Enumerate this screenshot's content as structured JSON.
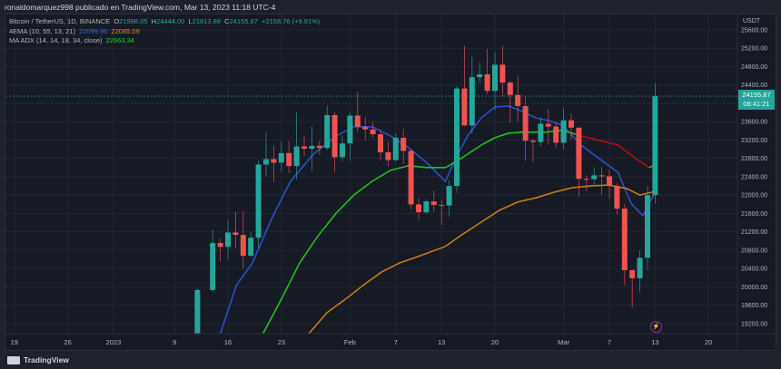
{
  "header": {
    "publish_line": "ronaldomarquez998 publicado en TradingView.com, Mar 13, 2023 11:18 UTC-4"
  },
  "legend": {
    "symbol": "Bitcoin / TetherUS, 1D, BINANCE",
    "o_label": "O",
    "o": "21998.05",
    "h_label": "H",
    "h": "24444.00",
    "l_label": "L",
    "l": "21813.88",
    "c_label": "C",
    "c": "24155.87",
    "change": "+2158.76 (+9.81%)",
    "ema_name": "4EMA (10, 55, 13, 21)",
    "ema_v1": "22099.96",
    "ema_v2": "22085.09",
    "adx_name": "MA ADX (14, 14, 18, 34, close)",
    "adx_v": "22663.34"
  },
  "price_axis": {
    "currency": "USDT",
    "ticks": [
      "25600.00",
      "25200.00",
      "24800.00",
      "24400.00",
      "24000.00",
      "23600.00",
      "23200.00",
      "22800.00",
      "22400.00",
      "22000.00",
      "21600.00",
      "21200.00",
      "20800.00",
      "20400.00",
      "20000.00",
      "19600.00",
      "19200.00"
    ],
    "last_price": "24155.87",
    "countdown": "08:41:21"
  },
  "footer": {
    "brand": "TradingView"
  },
  "colors": {
    "up": "#26a69a",
    "down": "#ef5350",
    "ema_fast": "#2b4fc9",
    "ema_slow": "#c87a14",
    "adx_ma": "#1fc21f",
    "adx_ma_bear": "#b00e0e",
    "bg": "#161a25",
    "grid": "#222633"
  },
  "chart_data": {
    "type": "candlestick",
    "title": "Bitcoin / TetherUS, 1D, BINANCE",
    "x_unit": "days since 2023-01-01",
    "ylim": [
      19000,
      25800
    ],
    "x_ticks": [
      {
        "day": -13,
        "label": "19"
      },
      {
        "day": -6,
        "label": "26"
      },
      {
        "day": 0,
        "label": "2023"
      },
      {
        "day": 8,
        "label": "9"
      },
      {
        "day": 15,
        "label": "16"
      },
      {
        "day": 22,
        "label": "23"
      },
      {
        "day": 31,
        "label": "Feb"
      },
      {
        "day": 37,
        "label": "7"
      },
      {
        "day": 43,
        "label": "13"
      },
      {
        "day": 50,
        "label": "20"
      },
      {
        "day": 59,
        "label": "Mar"
      },
      {
        "day": 65,
        "label": "7"
      },
      {
        "day": 71,
        "label": "13"
      },
      {
        "day": 78,
        "label": "20"
      }
    ],
    "y_tick_values": [
      25600,
      25200,
      24800,
      24400,
      24000,
      23600,
      23200,
      22800,
      22400,
      22000,
      21600,
      21200,
      20800,
      20400,
      20000,
      19600,
      19200
    ],
    "candles": [
      [
        11,
        18850,
        19970,
        18700,
        19930
      ],
      [
        13,
        19930,
        21250,
        19890,
        20954
      ],
      [
        14,
        20954,
        21050,
        20550,
        20871
      ],
      [
        15,
        20871,
        21460,
        20600,
        21185
      ],
      [
        16,
        21185,
        21640,
        20840,
        21132
      ],
      [
        17,
        21132,
        21650,
        20400,
        20677
      ],
      [
        18,
        20677,
        21190,
        20650,
        21071
      ],
      [
        19,
        21071,
        22750,
        20860,
        22667
      ],
      [
        20,
        22667,
        23370,
        22400,
        22783
      ],
      [
        21,
        22783,
        23078,
        22290,
        22707
      ],
      [
        22,
        22707,
        23170,
        22520,
        22916
      ],
      [
        23,
        22916,
        23180,
        22480,
        22632
      ],
      [
        24,
        22632,
        23800,
        22340,
        23060
      ],
      [
        25,
        23060,
        23290,
        22850,
        23009
      ],
      [
        26,
        23009,
        23500,
        22530,
        23074
      ],
      [
        27,
        23074,
        23180,
        22880,
        23027
      ],
      [
        28,
        23027,
        23950,
        22980,
        23743
      ],
      [
        29,
        23743,
        23800,
        22500,
        22826
      ],
      [
        30,
        22826,
        23300,
        22730,
        23125
      ],
      [
        31,
        23125,
        23800,
        22760,
        23732
      ],
      [
        32,
        23732,
        24250,
        23360,
        23488
      ],
      [
        33,
        23488,
        23700,
        23200,
        23431
      ],
      [
        34,
        23431,
        23590,
        23250,
        23326
      ],
      [
        35,
        23326,
        23430,
        22750,
        22932
      ],
      [
        36,
        22932,
        23160,
        22630,
        22762
      ],
      [
        37,
        22762,
        23350,
        22740,
        23249
      ],
      [
        38,
        23249,
        23450,
        22680,
        22963
      ],
      [
        39,
        22963,
        23010,
        21690,
        21797
      ],
      [
        40,
        21797,
        21940,
        21450,
        21625
      ],
      [
        41,
        21625,
        21900,
        21600,
        21862
      ],
      [
        42,
        21862,
        22090,
        21630,
        21783
      ],
      [
        43,
        21783,
        21890,
        21350,
        21773
      ],
      [
        44,
        21773,
        22320,
        21530,
        22199
      ],
      [
        45,
        22199,
        24380,
        22050,
        24324
      ],
      [
        46,
        24324,
        25250,
        23500,
        23517
      ],
      [
        47,
        23517,
        25020,
        23340,
        24569
      ],
      [
        48,
        24569,
        24880,
        24450,
        24631
      ],
      [
        49,
        24631,
        25190,
        24200,
        24271
      ],
      [
        50,
        24271,
        25120,
        23840,
        24842
      ],
      [
        51,
        24842,
        25250,
        24150,
        24452
      ],
      [
        52,
        24452,
        24480,
        23570,
        24182
      ],
      [
        53,
        24182,
        24600,
        23600,
        23940
      ],
      [
        54,
        23940,
        24140,
        22750,
        23185
      ],
      [
        55,
        23185,
        23220,
        22720,
        23157
      ],
      [
        56,
        23157,
        23690,
        23070,
        23554
      ],
      [
        57,
        23554,
        23880,
        23100,
        23492
      ],
      [
        58,
        23492,
        23600,
        23020,
        23141
      ],
      [
        59,
        23141,
        23890,
        23000,
        23629
      ],
      [
        60,
        23629,
        23780,
        23200,
        23469
      ],
      [
        61,
        23469,
        23476,
        21970,
        22354
      ],
      [
        62,
        22354,
        22420,
        22080,
        22346
      ],
      [
        63,
        22346,
        22610,
        22200,
        22430
      ],
      [
        64,
        22430,
        22600,
        22000,
        22409
      ],
      [
        65,
        22409,
        22550,
        21920,
        22197
      ],
      [
        66,
        22197,
        22260,
        21580,
        21705
      ],
      [
        67,
        21705,
        21800,
        20040,
        20363
      ],
      [
        68,
        20363,
        20370,
        19550,
        20187
      ],
      [
        69,
        20187,
        20790,
        19880,
        20632
      ],
      [
        70,
        20632,
        22200,
        20370,
        21998
      ],
      [
        71,
        21998,
        24444,
        21813,
        24155.87
      ]
    ],
    "series": [
      {
        "name": "EMA 10",
        "color_key": "ema_fast",
        "points": [
          [
            14,
            18980
          ],
          [
            16.1,
            20030
          ],
          [
            18.2,
            20520
          ],
          [
            20.8,
            21510
          ],
          [
            23.2,
            22300
          ],
          [
            26.2,
            22890
          ],
          [
            29.2,
            23290
          ],
          [
            31.5,
            23490
          ],
          [
            33.9,
            23490
          ],
          [
            36.3,
            23290
          ],
          [
            38.7,
            23030
          ],
          [
            41.1,
            22700
          ],
          [
            43.5,
            22300
          ],
          [
            44.6,
            22700
          ],
          [
            46.4,
            23290
          ],
          [
            48.2,
            23680
          ],
          [
            50,
            23920
          ],
          [
            51.8,
            23940
          ],
          [
            53.6,
            23820
          ],
          [
            55.4,
            23680
          ],
          [
            57.1,
            23620
          ],
          [
            58.9,
            23520
          ],
          [
            61.3,
            23090
          ],
          [
            63.7,
            22790
          ],
          [
            66.1,
            22500
          ],
          [
            67.9,
            21810
          ],
          [
            69.4,
            21550
          ],
          [
            71.1,
            22099.96
          ]
        ]
      },
      {
        "name": "MA ADX",
        "color_key": "adx_ma",
        "bear_range": [
          61,
          70
        ],
        "points": [
          [
            19.6,
            18980
          ],
          [
            22,
            19730
          ],
          [
            24.4,
            20520
          ],
          [
            26.8,
            21110
          ],
          [
            29.2,
            21610
          ],
          [
            31.5,
            22000
          ],
          [
            33.9,
            22300
          ],
          [
            36.3,
            22540
          ],
          [
            38.7,
            22640
          ],
          [
            41.1,
            22600
          ],
          [
            43.5,
            22600
          ],
          [
            44.6,
            22700
          ],
          [
            46.4,
            22890
          ],
          [
            48.2,
            23090
          ],
          [
            50,
            23250
          ],
          [
            51.8,
            23350
          ],
          [
            53.6,
            23370
          ],
          [
            56.5,
            23370
          ],
          [
            58.9,
            23410
          ],
          [
            61.3,
            23290
          ],
          [
            63.7,
            23190
          ],
          [
            66.1,
            23090
          ],
          [
            68.5,
            22790
          ],
          [
            70.2,
            22600
          ],
          [
            71.1,
            22663.34
          ]
        ]
      },
      {
        "name": "EMA 55",
        "color_key": "ema_slow",
        "points": [
          [
            25.6,
            18980
          ],
          [
            28,
            19440
          ],
          [
            30.4,
            19730
          ],
          [
            32.7,
            20030
          ],
          [
            35.1,
            20320
          ],
          [
            37.5,
            20520
          ],
          [
            39.9,
            20660
          ],
          [
            43.5,
            20880
          ],
          [
            45.8,
            21150
          ],
          [
            48.2,
            21410
          ],
          [
            50.6,
            21670
          ],
          [
            53,
            21850
          ],
          [
            55.4,
            21940
          ],
          [
            57.7,
            22060
          ],
          [
            60.1,
            22160
          ],
          [
            62.5,
            22200
          ],
          [
            64.9,
            22220
          ],
          [
            67.3,
            22140
          ],
          [
            69,
            22000
          ],
          [
            71.1,
            22085.09
          ]
        ]
      }
    ]
  }
}
